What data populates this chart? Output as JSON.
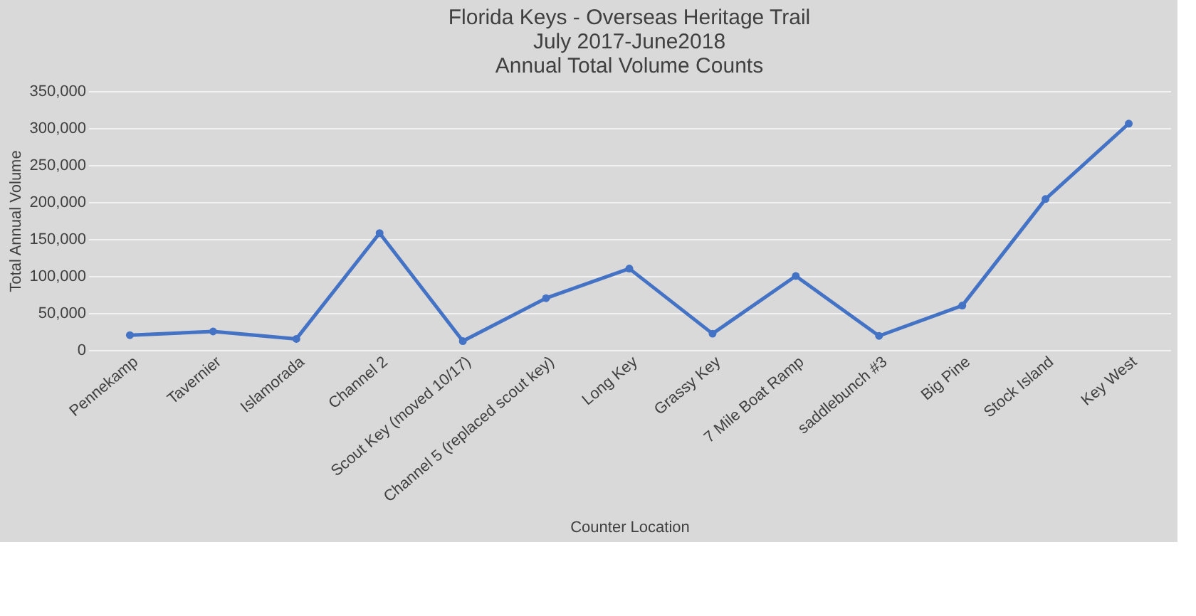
{
  "chart_data": {
    "type": "line",
    "title": [
      "Florida Keys - Overseas Heritage Trail",
      "July 2017-June2018",
      "Annual Total Volume Counts"
    ],
    "xlabel": "Counter Location",
    "ylabel": "Total Annual Volume",
    "categories": [
      "Pennekamp",
      "Tavernier",
      "Islamorada",
      "Channel 2",
      "Scout Key (moved 10/17)",
      "Channel 5 (replaced scout key)",
      "Long Key",
      "Grassy Key",
      "7 Mile Boat Ramp",
      "saddlebunch #3",
      "Big Pine",
      "Stock Island",
      "Key West"
    ],
    "series": [
      {
        "color": "#4472c4",
        "values": [
          20000,
          25000,
          15000,
          158000,
          12000,
          70000,
          110000,
          22000,
          100000,
          19000,
          60000,
          204000,
          306000
        ]
      }
    ],
    "ylim": [
      0,
      350000
    ],
    "yticks": [
      {
        "value": 0,
        "label": "0"
      },
      {
        "value": 50000,
        "label": "50,000"
      },
      {
        "value": 100000,
        "label": "100,000"
      },
      {
        "value": 150000,
        "label": "150,000"
      },
      {
        "value": 200000,
        "label": "200,000"
      },
      {
        "value": 250000,
        "label": "250,000"
      },
      {
        "value": 300000,
        "label": "300,000"
      },
      {
        "value": 350000,
        "label": "350,000"
      }
    ],
    "grid": "y",
    "marker": "circle",
    "line_style": "solid"
  }
}
